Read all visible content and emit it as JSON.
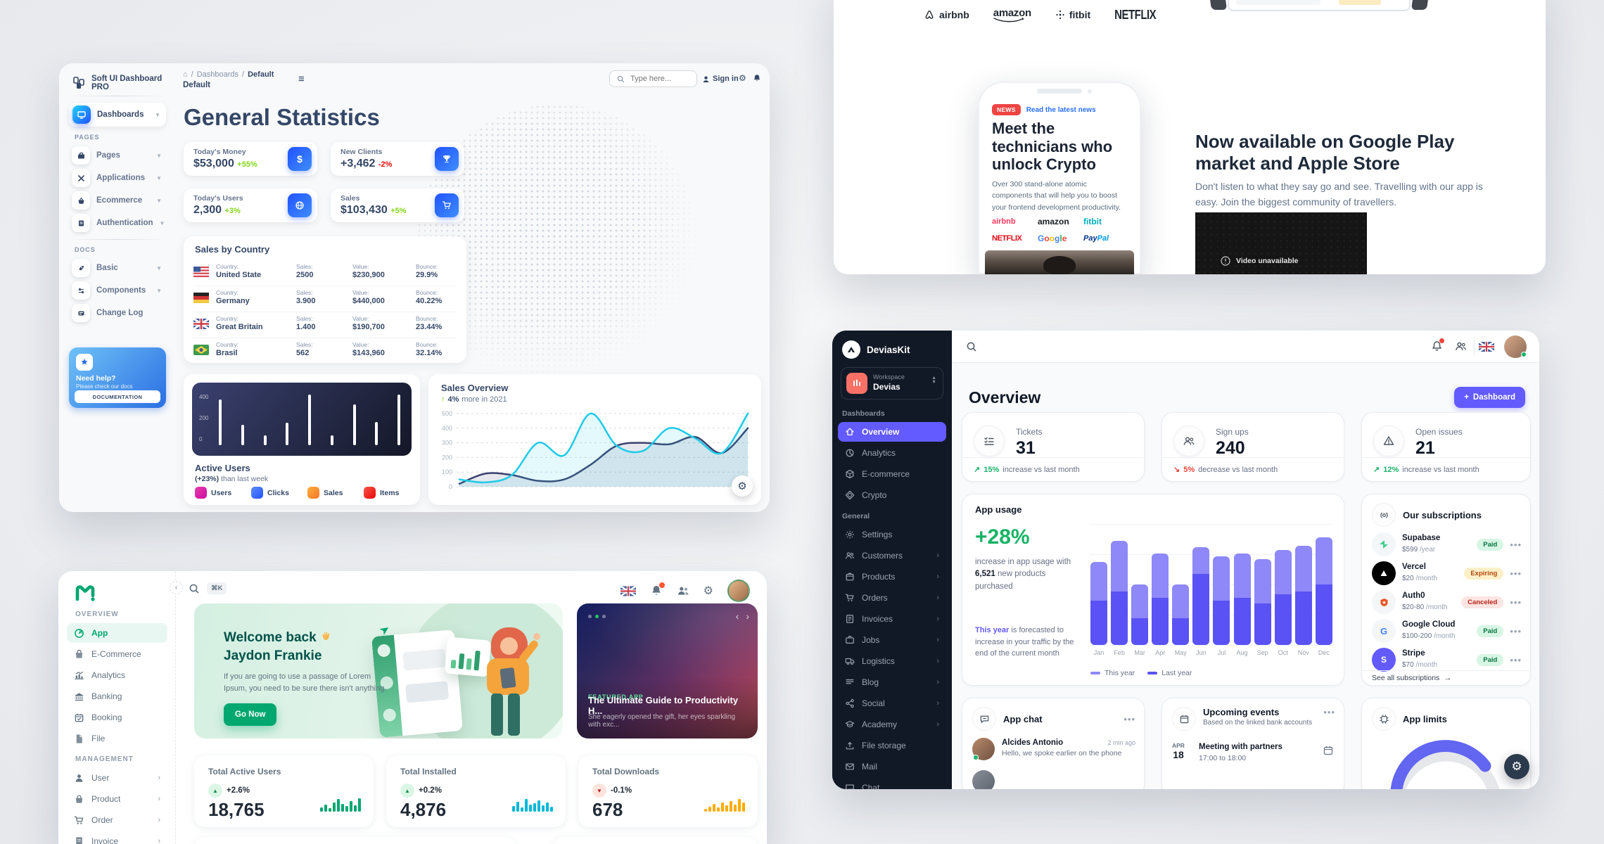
{
  "soft_ui": {
    "brand": "Soft UI Dashboard PRO",
    "breadcrumb": {
      "section": "Dashboards",
      "page": "Default"
    },
    "page_label": "Default",
    "header": {
      "search_placeholder": "Type here...",
      "sign_in": "Sign in"
    },
    "sidebar": {
      "active_item": "Dashboards",
      "pages_label": "PAGES",
      "pages_items": [
        {
          "label": "Pages"
        },
        {
          "label": "Applications"
        },
        {
          "label": "Ecommerce"
        },
        {
          "label": "Authentication"
        }
      ],
      "docs_label": "DOCS",
      "docs_items": [
        {
          "label": "Basic"
        },
        {
          "label": "Components"
        },
        {
          "label": "Change Log"
        }
      ],
      "help": {
        "title": "Need help?",
        "subtitle": "Please check our docs",
        "button": "DOCUMENTATION"
      }
    },
    "title": "General Statistics",
    "stats": [
      {
        "label": "Today's Money",
        "value": "$53,000",
        "delta": "+55%",
        "trend": "up"
      },
      {
        "label": "New Clients",
        "value": "+3,462",
        "delta": "-2%",
        "trend": "down"
      },
      {
        "label": "Today's Users",
        "value": "2,300",
        "delta": "+3%",
        "trend": "up"
      },
      {
        "label": "Sales",
        "value": "$103,430",
        "delta": "+5%",
        "trend": "up"
      }
    ],
    "sales_by_country": {
      "title": "Sales by Country",
      "col_labels": {
        "country": "Country:",
        "sales": "Sales:",
        "value": "Value:",
        "bounce": "Bounce:"
      },
      "rows": [
        {
          "country": "United State",
          "sales": "2500",
          "value": "$230,900",
          "bounce": "29.9%"
        },
        {
          "country": "Germany",
          "sales": "3.900",
          "value": "$440,000",
          "bounce": "40.22%"
        },
        {
          "country": "Great Britain",
          "sales": "1.400",
          "value": "$190,700",
          "bounce": "23.44%"
        },
        {
          "country": "Brasil",
          "sales": "562",
          "value": "$143,960",
          "bounce": "32.14%"
        }
      ]
    },
    "active_users": {
      "title": "Active Users",
      "subtitle_strong": "(+23%)",
      "subtitle_rest": "than last week",
      "chart": {
        "type": "bar",
        "y_labels": [
          "400",
          "200",
          "0"
        ],
        "max": 500,
        "values": [
          450,
          200,
          100,
          220,
          500,
          100,
          400,
          230,
          500
        ]
      },
      "legend": [
        {
          "label": "Users",
          "color": "#cb0c9f"
        },
        {
          "label": "Clicks",
          "color": "#3a74e8"
        },
        {
          "label": "Sales",
          "color": "#f97326"
        },
        {
          "label": "Items",
          "color": "#ea0606"
        }
      ]
    },
    "sales_overview": {
      "title": "Sales Overview",
      "delta": "4%",
      "subtitle": "more in 2021",
      "chart": {
        "type": "line",
        "max": 500,
        "y_labels": [
          500,
          400,
          300,
          200,
          100,
          0
        ],
        "series": [
          {
            "name": "cyan",
            "color": "#1ecbe8",
            "values": [
              50,
              30,
              80,
              300,
              215,
              500,
              280,
              245,
              400,
              330,
              230,
              500
            ]
          },
          {
            "name": "navy",
            "color": "#3a416f",
            "values": [
              20,
              90,
              80,
              40,
              50,
              150,
              280,
              300,
              290,
              340,
              230,
              400
            ]
          }
        ]
      }
    }
  },
  "landing": {
    "logos": [
      {
        "name": "airbnb"
      },
      {
        "name": "amazon"
      },
      {
        "name": "fitbit"
      },
      {
        "name": "NETFLIX"
      }
    ],
    "phone": {
      "badge": "NEWS",
      "link": "Read the latest news",
      "heading": "Meet the technicians who unlock Crypto",
      "body": "Over 300 stand-alone atomic components that will help you to boost your frontend development productivity.",
      "logos": [
        {
          "name": "airbnb"
        },
        {
          "name": "amazon"
        },
        {
          "name": "fitbit"
        },
        {
          "name": "NETFLIX"
        },
        {
          "name": "Google"
        },
        {
          "name": "PayPal"
        }
      ]
    },
    "promo": {
      "heading": "Now available on Google Play market and Apple Store",
      "body": "Don't listen to what they say go and see. Travelling with our app is easy. Join the biggest community of travellers.",
      "video_label": "Video unavailable"
    }
  },
  "devias": {
    "brand": "DeviasKit",
    "workspace": {
      "label": "Workspace",
      "name": "Devias"
    },
    "nav": {
      "dashboards_label": "Dashboards",
      "dashboards": [
        {
          "label": "Overview"
        },
        {
          "label": "Analytics"
        },
        {
          "label": "E-commerce"
        },
        {
          "label": "Crypto"
        }
      ],
      "general_label": "General",
      "general": [
        {
          "label": "Settings"
        },
        {
          "label": "Customers"
        },
        {
          "label": "Products"
        },
        {
          "label": "Orders"
        },
        {
          "label": "Invoices"
        },
        {
          "label": "Jobs"
        },
        {
          "label": "Logistics"
        },
        {
          "label": "Blog"
        },
        {
          "label": "Social"
        },
        {
          "label": "Academy"
        },
        {
          "label": "File storage"
        },
        {
          "label": "Mail"
        },
        {
          "label": "Chat"
        }
      ]
    },
    "page_title": "Overview",
    "add_button": "Dashboard",
    "stats": [
      {
        "label": "Tickets",
        "value": "31",
        "pct": "15%",
        "text": "increase vs last month",
        "trend": "up"
      },
      {
        "label": "Sign ups",
        "value": "240",
        "pct": "5%",
        "text": "decrease vs last month",
        "trend": "down"
      },
      {
        "label": "Open issues",
        "value": "21",
        "pct": "12%",
        "text": "increase vs last month",
        "trend": "up"
      }
    ],
    "app_usage": {
      "title": "App usage",
      "big": "+28%",
      "line1": "increase in app usage with",
      "strong": "6,521",
      "line2": "new products purchased",
      "forecast_strong": "This year",
      "forecast": "is forecasted to increase in your traffic by the end of the current month",
      "chart": {
        "type": "stacked-bar",
        "categories": [
          "Jan",
          "Feb",
          "Mar",
          "Apr",
          "May",
          "Jun",
          "Jul",
          "Aug",
          "Sep",
          "Oct",
          "Nov",
          "Dec"
        ],
        "series": [
          {
            "name": "This year",
            "color": "#8e88f9",
            "values": [
              29,
              38,
              25,
              33,
              25,
              20,
              33,
              33,
              33,
              33,
              34,
              35
            ]
          },
          {
            "name": "Last year",
            "color": "#5a52f5",
            "values": [
              33,
              40,
              20,
              35,
              20,
              53,
              33,
              35,
              31,
              38,
              40,
              45
            ]
          }
        ]
      },
      "legend": [
        {
          "label": "This year"
        },
        {
          "label": "Last year"
        }
      ]
    },
    "subscriptions": {
      "title": "Our subscriptions",
      "items": [
        {
          "name": "Supabase",
          "price": "$599",
          "period": "/year",
          "status": "Paid"
        },
        {
          "name": "Vercel",
          "price": "$20",
          "period": "/month",
          "status": "Expiring"
        },
        {
          "name": "Auth0",
          "price": "$20-80",
          "period": "/month",
          "status": "Canceled"
        },
        {
          "name": "Google Cloud",
          "price": "$100-200",
          "period": "/month",
          "status": "Paid"
        },
        {
          "name": "Stripe",
          "price": "$70",
          "period": "/month",
          "status": "Paid"
        }
      ],
      "footer": "See all subscriptions"
    },
    "chat": {
      "title": "App chat",
      "name": "Alcides Antonio",
      "message": "Hello, we spoke earlier on the phone",
      "time": "2 min ago"
    },
    "events": {
      "title": "Upcoming events",
      "subtitle": "Based on the linked bank accounts",
      "month": "APR",
      "day": "18",
      "event": "Meeting with partners",
      "time": "17:00 to 18:00"
    },
    "limits": {
      "title": "App limits"
    }
  },
  "minimal": {
    "nav": {
      "overview_label": "OVERVIEW",
      "overview": [
        {
          "label": "App"
        },
        {
          "label": "E-Commerce"
        },
        {
          "label": "Analytics"
        },
        {
          "label": "Banking"
        },
        {
          "label": "Booking"
        },
        {
          "label": "File"
        }
      ],
      "management_label": "MANAGEMENT",
      "management": [
        {
          "label": "User"
        },
        {
          "label": "Product"
        },
        {
          "label": "Order"
        },
        {
          "label": "Invoice"
        }
      ]
    },
    "header": {
      "shortcut": "⌘K"
    },
    "welcome": {
      "line1": "Welcome back",
      "line2": "Jaydon Frankie",
      "body": "If you are going to use a passage of Lorem Ipsum, you need to be sure there isn't anything.",
      "button": "Go Now"
    },
    "featured": {
      "tag": "FEATURED APP",
      "title": "The Ultimate Guide to Productivity H...",
      "subtitle": "She eagerly opened the gift, her eyes sparkling with exc..."
    },
    "stats": [
      {
        "label": "Total Active Users",
        "delta": "+2.6%",
        "trend": "up",
        "value": "18,765",
        "color": "#00a76f",
        "spark": [
          6,
          10,
          5,
          13,
          18,
          11,
          8,
          15,
          9,
          19
        ]
      },
      {
        "label": "Total Installed",
        "delta": "+0.2%",
        "trend": "up",
        "value": "4,876",
        "color": "#00b8d9",
        "spark": [
          8,
          14,
          6,
          18,
          10,
          12,
          16,
          9,
          13,
          7
        ]
      },
      {
        "label": "Total Downloads",
        "delta": "-0.1%",
        "trend": "down",
        "value": "678",
        "color": "#ffab00",
        "spark": [
          4,
          7,
          11,
          6,
          13,
          9,
          15,
          10,
          18,
          13
        ]
      }
    ]
  }
}
